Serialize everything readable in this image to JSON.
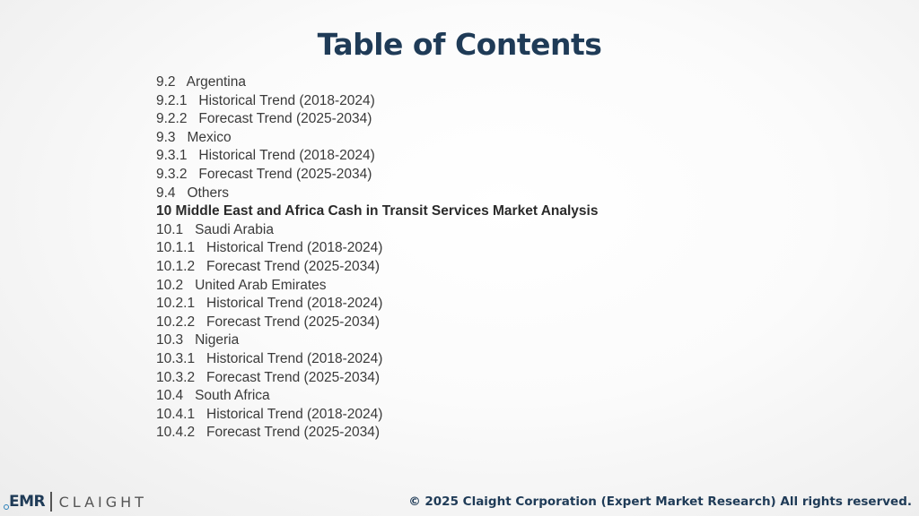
{
  "title": "Table of Contents",
  "toc": [
    {
      "text": "9.2   Argentina"
    },
    {
      "text": "9.2.1   Historical Trend (2018-2024)"
    },
    {
      "text": "9.2.2   Forecast Trend (2025-2034)"
    },
    {
      "text": "9.3   Mexico"
    },
    {
      "text": "9.3.1   Historical Trend (2018-2024)"
    },
    {
      "text": "9.3.2   Forecast Trend (2025-2034)"
    },
    {
      "text": "9.4   Others"
    },
    {
      "text": "10 Middle East and Africa Cash in Transit Services Market Analysis"
    },
    {
      "text": "10.1   Saudi Arabia"
    },
    {
      "text": "10.1.1   Historical Trend (2018-2024)"
    },
    {
      "text": "10.1.2   Forecast Trend (2025-2034)"
    },
    {
      "text": "10.2   United Arab Emirates"
    },
    {
      "text": "10.2.1   Historical Trend (2018-2024)"
    },
    {
      "text": "10.2.2   Forecast Trend (2025-2034)"
    },
    {
      "text": "10.3   Nigeria"
    },
    {
      "text": "10.3.1   Historical Trend (2018-2024)"
    },
    {
      "text": "10.3.2   Forecast Trend (2025-2034)"
    },
    {
      "text": "10.4   South Africa"
    },
    {
      "text": "10.4.1   Historical Trend (2018-2024)"
    },
    {
      "text": "10.4.2   Forecast Trend (2025-2034)"
    }
  ],
  "footer": {
    "logo_emr": "EMR",
    "logo_claight": "CLAIGHT",
    "copyright": "© 2025 Claight Corporation (Expert Market Research) All rights reserved."
  },
  "colors": {
    "title": "#1f3b57",
    "text": "#3a3a3a",
    "accent": "#2a7fb8"
  }
}
